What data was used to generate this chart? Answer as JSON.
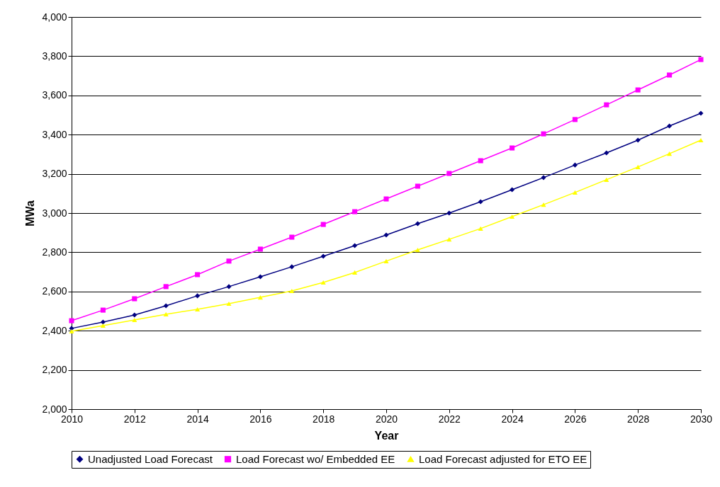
{
  "chart_data": {
    "type": "line",
    "xlabel": "Year",
    "ylabel": "MWa",
    "x": [
      2010,
      2011,
      2012,
      2013,
      2014,
      2015,
      2016,
      2017,
      2018,
      2019,
      2020,
      2021,
      2022,
      2023,
      2024,
      2025,
      2026,
      2027,
      2028,
      2029,
      2030
    ],
    "series": [
      {
        "name": "Unadjusted Load Forecast",
        "color": "#000080",
        "marker": "diamond",
        "values": [
          2412,
          2444,
          2480,
          2527,
          2578,
          2625,
          2675,
          2726,
          2780,
          2834,
          2888,
          2946,
          3000,
          3058,
          3119,
          3181,
          3245,
          3307,
          3372,
          3444,
          3509
        ]
      },
      {
        "name": "Load Forecast wo/ Embedded EE",
        "color": "#ff00ff",
        "marker": "square",
        "values": [
          2451,
          2505,
          2563,
          2625,
          2686,
          2755,
          2816,
          2877,
          2942,
          3007,
          3072,
          3137,
          3202,
          3267,
          3332,
          3404,
          3477,
          3552,
          3628,
          3704,
          3783
        ]
      },
      {
        "name": "Load Forecast adjusted for ETO EE",
        "color": "#ffff00",
        "marker": "triangle",
        "values": [
          2397,
          2426,
          2455,
          2484,
          2509,
          2538,
          2570,
          2603,
          2646,
          2697,
          2755,
          2812,
          2866,
          2921,
          2982,
          3043,
          3105,
          3170,
          3235,
          3303,
          3372
        ]
      }
    ],
    "xlim": [
      2010,
      2030
    ],
    "xticks": [
      2010,
      2012,
      2014,
      2016,
      2018,
      2020,
      2022,
      2024,
      2026,
      2028,
      2030
    ],
    "ylim": [
      2000,
      4000
    ],
    "yticks": [
      {
        "value": 2000,
        "label": "2,000"
      },
      {
        "value": 2200,
        "label": "2,200"
      },
      {
        "value": 2400,
        "label": "2,400"
      },
      {
        "value": 2600,
        "label": "2,600"
      },
      {
        "value": 2800,
        "label": "2,800"
      },
      {
        "value": 3000,
        "label": "3,000"
      },
      {
        "value": 3200,
        "label": "3,200"
      },
      {
        "value": 3400,
        "label": "3,400"
      },
      {
        "value": 3600,
        "label": "3,600"
      },
      {
        "value": 3800,
        "label": "3,800"
      },
      {
        "value": 4000,
        "label": "4,000"
      }
    ],
    "grid": "y",
    "legend": "bottom",
    "line_style": "solid"
  }
}
